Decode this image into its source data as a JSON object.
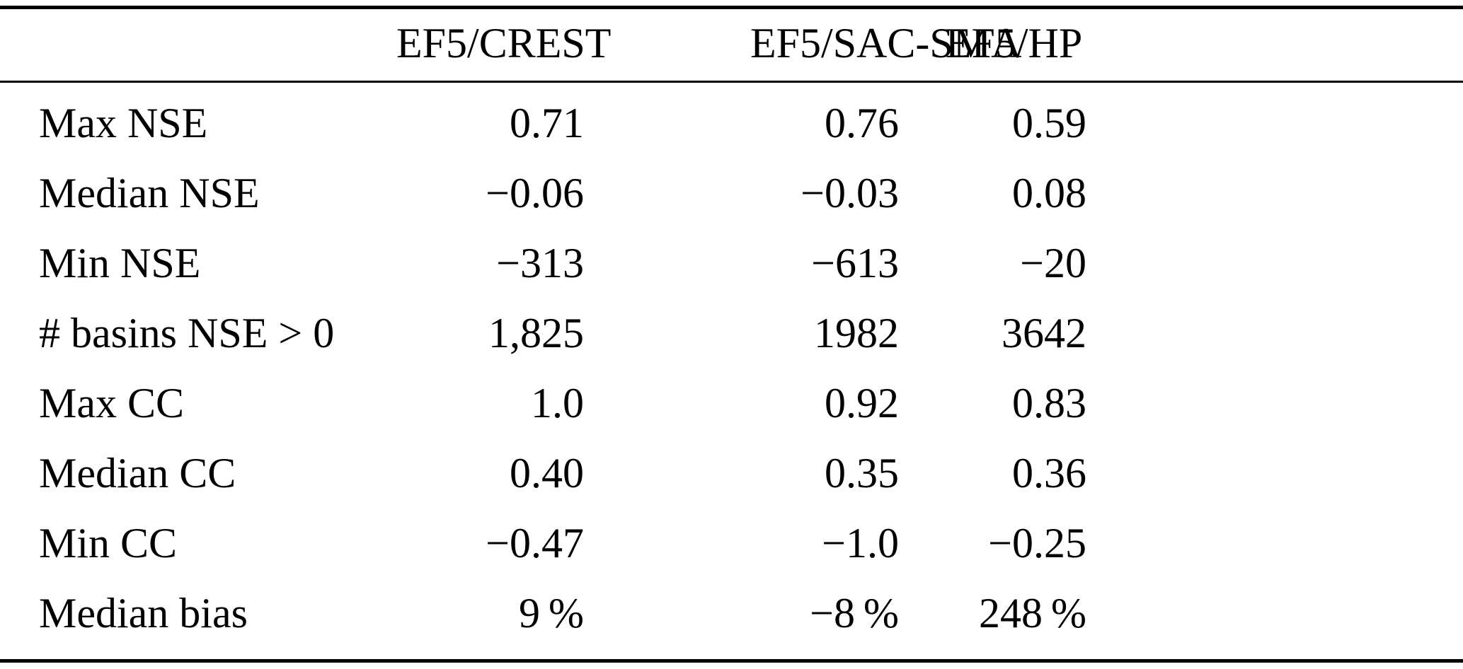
{
  "table": {
    "columns": [
      "EF5/CREST",
      "EF5/SAC-SMA",
      "EF5/HP"
    ],
    "rows": [
      {
        "label": "Max NSE",
        "values": [
          "0.71",
          "0.76",
          "0.59"
        ]
      },
      {
        "label": "Median NSE",
        "values": [
          "−0.06",
          "−0.03",
          "0.08"
        ]
      },
      {
        "label": "Min NSE",
        "values": [
          "−313",
          "−613",
          "−20"
        ]
      },
      {
        "label": "# basins NSE > 0",
        "values": [
          "1,825",
          "1982",
          "3642"
        ]
      },
      {
        "label": "Max CC",
        "values": [
          "1.0",
          "0.92",
          "0.83"
        ]
      },
      {
        "label": "Median CC",
        "values": [
          "0.40",
          "0.35",
          "0.36"
        ]
      },
      {
        "label": "Min CC",
        "values": [
          "−0.47",
          "−1.0",
          "−0.25"
        ]
      },
      {
        "label": "Median bias",
        "values": [
          "9 %",
          "−8 %",
          "248 %"
        ]
      }
    ]
  },
  "colors": {
    "text": "#000000",
    "background": "#ffffff",
    "rule": "#000000"
  }
}
